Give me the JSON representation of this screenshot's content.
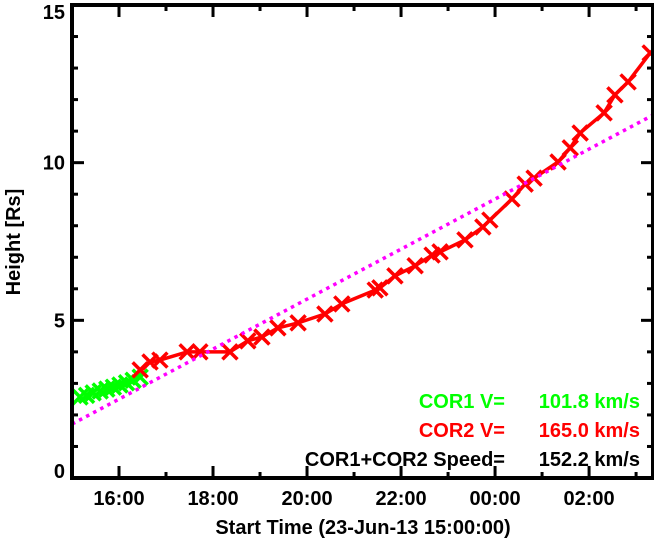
{
  "chart_data": {
    "type": "scatter",
    "title": "",
    "xlabel": "Start Time (23-Jun-13 15:00:00)",
    "ylabel": "Height [Rs]",
    "x_units": "hours since 23-Jun-13 15:00:00",
    "xlim": [
      0,
      12.36
    ],
    "ylim": [
      0,
      15
    ],
    "x_ticks": [
      {
        "value": 1,
        "label": "16:00"
      },
      {
        "value": 3,
        "label": "18:00"
      },
      {
        "value": 5,
        "label": "20:00"
      },
      {
        "value": 7,
        "label": "22:00"
      },
      {
        "value": 9,
        "label": "00:00"
      },
      {
        "value": 11,
        "label": "02:00"
      }
    ],
    "y_ticks": [
      {
        "value": 0,
        "label": "0"
      },
      {
        "value": 5,
        "label": "5"
      },
      {
        "value": 10,
        "label": "10"
      },
      {
        "value": 15,
        "label": "15"
      }
    ],
    "grid": false,
    "series": [
      {
        "name": "COR1",
        "color": "#00ff00",
        "marker": "x",
        "line": false,
        "x": [
          0.17,
          0.31,
          0.45,
          0.6,
          0.74,
          0.88,
          1.02,
          1.16,
          1.3,
          1.45
        ],
        "y": [
          2.57,
          2.62,
          2.7,
          2.76,
          2.82,
          2.88,
          2.95,
          3.02,
          3.1,
          3.2
        ]
      },
      {
        "name": "COR2",
        "color": "#ff0000",
        "marker": "x",
        "line": true,
        "x": [
          1.45,
          1.66,
          1.87,
          2.45,
          2.72,
          3.36,
          3.74,
          4.04,
          4.38,
          4.81,
          5.38,
          5.74,
          6.45,
          6.55,
          6.87,
          7.3,
          7.66,
          7.83,
          8.36,
          8.74,
          8.89,
          9.36,
          9.64,
          9.83,
          10.34,
          10.6,
          10.81,
          11.32,
          11.55,
          11.83,
          12.3
        ],
        "y": [
          3.43,
          3.68,
          3.74,
          4.0,
          4.0,
          4.0,
          4.35,
          4.47,
          4.76,
          4.92,
          5.2,
          5.52,
          5.96,
          6.03,
          6.41,
          6.73,
          7.07,
          7.17,
          7.55,
          7.96,
          8.18,
          8.85,
          9.32,
          9.51,
          10.02,
          10.47,
          10.94,
          11.58,
          12.15,
          12.56,
          13.48
        ]
      },
      {
        "name": "COR1+COR2 linear fit",
        "color": "#ff00ff",
        "line_style": "dotted",
        "x": [
          0,
          12.36
        ],
        "y": [
          1.71,
          11.51
        ]
      }
    ],
    "annotations": [
      {
        "label": "COR1 V=",
        "value": "101.8 km/s",
        "color": "#00ff00"
      },
      {
        "label": "COR2 V=",
        "value": "165.0 km/s",
        "color": "#ff0000"
      },
      {
        "label": "COR1+COR2 Speed=",
        "value": "152.2 km/s",
        "color": "#000000"
      }
    ]
  }
}
